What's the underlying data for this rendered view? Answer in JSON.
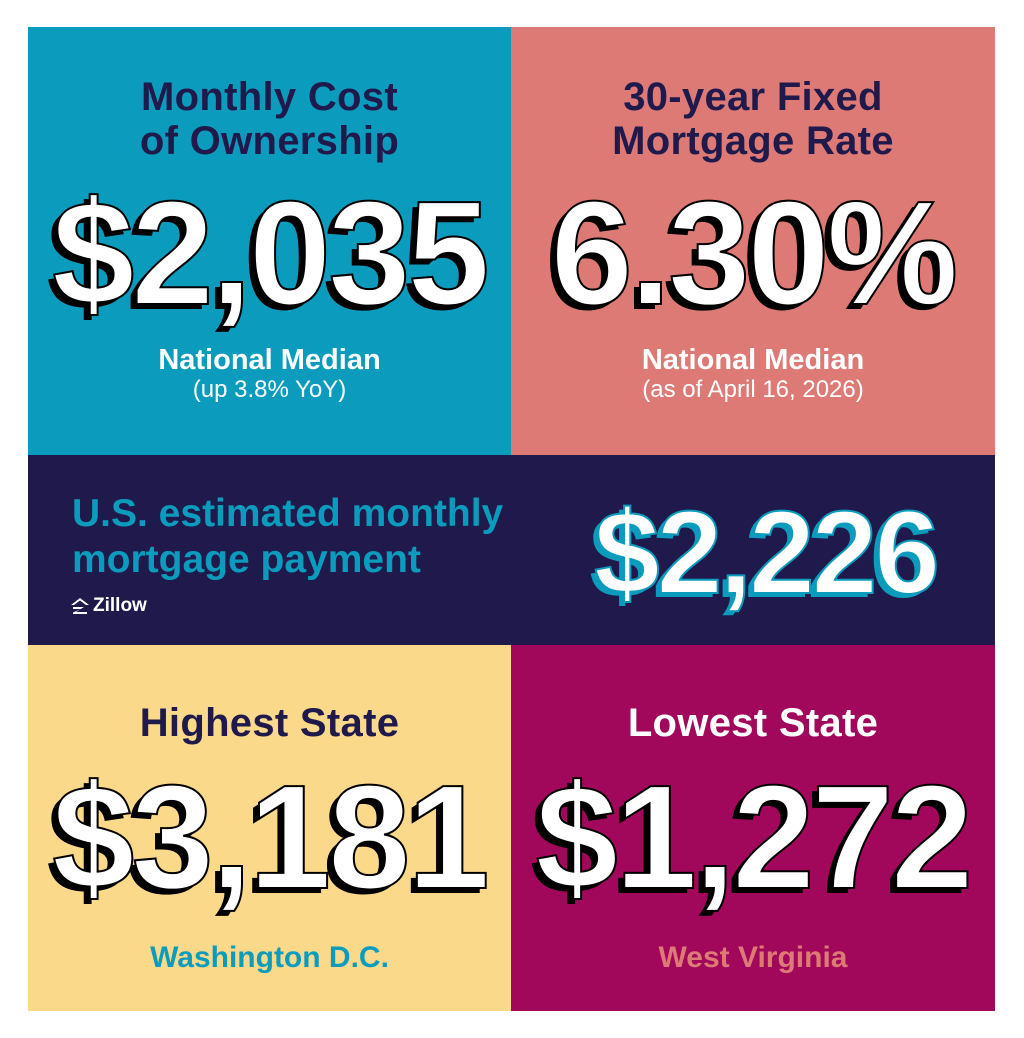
{
  "monthly_cost": {
    "heading_line1": "Monthly Cost",
    "heading_line2": "of Ownership",
    "value": "$2,035",
    "label": "National Median",
    "note": "(up 3.8% YoY)"
  },
  "mortgage_rate": {
    "heading_line1": "30-year Fixed",
    "heading_line2": "Mortgage Rate",
    "value": "6.30%",
    "label": "National Median",
    "note": "(as of April 16, 2026)"
  },
  "monthly_payment": {
    "title_line1": "U.S. estimated monthly",
    "title_line2": "mortgage payment",
    "value": "$2,226",
    "brand": "Zillow"
  },
  "highest_state": {
    "heading": "Highest State",
    "value": "$3,181",
    "state": "Washington D.C."
  },
  "lowest_state": {
    "heading": "Lowest State",
    "value": "$1,272",
    "state": "West Virginia"
  },
  "colors": {
    "teal": "#0b9bbd",
    "salmon": "#dd7a76",
    "navy": "#1f1a4b",
    "sand": "#fbd98a",
    "magenta": "#a1075a"
  },
  "icons": [
    "zillow-logo-icon"
  ]
}
